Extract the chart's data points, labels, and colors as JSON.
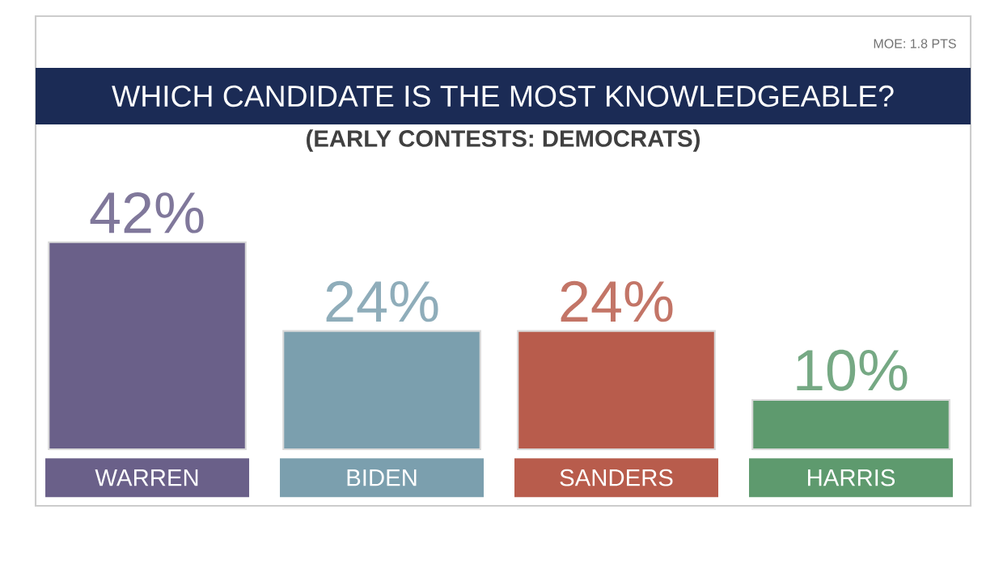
{
  "chart_data": {
    "type": "bar",
    "title": "WHICH CANDIDATE IS THE MOST KNOWLEDGEABLE?",
    "subtitle": "(EARLY CONTESTS: DEMOCRATS)",
    "annotations": [
      "MOE: 1.8 PTS"
    ],
    "categories": [
      "WARREN",
      "BIDEN",
      "SANDERS",
      "HARRIS"
    ],
    "values": [
      42,
      24,
      24,
      10
    ],
    "colors": [
      "#6a6089",
      "#7b9fae",
      "#b85c4c",
      "#5e9a6e"
    ],
    "value_labels": [
      "42%",
      "24%",
      "24%",
      "10%"
    ]
  }
}
